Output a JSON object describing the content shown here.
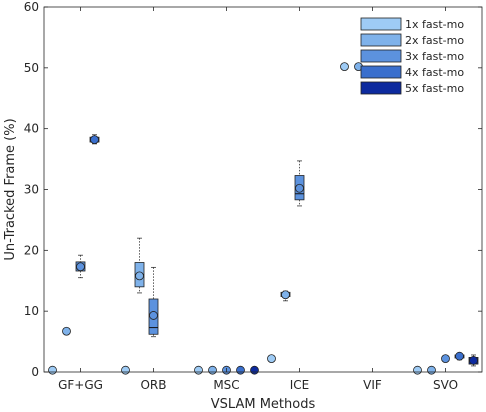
{
  "chart_data": {
    "type": "box",
    "xlabel": "VSLAM Methods",
    "ylabel": "Un-Tracked Frame (%)",
    "ylim": [
      0,
      60
    ],
    "yticks": [
      0,
      10,
      20,
      30,
      40,
      50,
      60
    ],
    "categories": [
      "GF+GG",
      "ORB",
      "MSC",
      "ICE",
      "VIF",
      "SVO"
    ],
    "grid": false,
    "legend_position": "top-right",
    "series": [
      {
        "name": "1x fast-mo",
        "color": "#9ecbf5",
        "boxes": [
          {
            "mean": 0.3
          },
          {
            "mean": 0.3
          },
          {
            "mean": 0.3
          },
          {
            "mean": 2.2
          },
          {
            "mean": 50.2
          },
          {
            "mean": 0.3
          }
        ]
      },
      {
        "name": "2x fast-mo",
        "color": "#7fb2ea",
        "boxes": [
          {
            "mean": 6.7
          },
          {
            "min": 13.0,
            "q1": 14.0,
            "median": 16.0,
            "q3": 18.0,
            "max": 22.0,
            "mean": 15.8
          },
          {
            "mean": 0.3
          },
          {
            "min": 11.7,
            "q1": 12.4,
            "median": 12.8,
            "q3": 13.1,
            "max": 13.3,
            "mean": 12.7
          },
          {
            "mean": 50.2
          },
          {
            "mean": 0.3
          }
        ]
      },
      {
        "name": "3x fast-mo",
        "color": "#5c92de",
        "boxes": [
          {
            "min": 15.5,
            "q1": 16.6,
            "median": 17.3,
            "q3": 18.1,
            "max": 19.2,
            "mean": 17.3
          },
          {
            "min": 5.8,
            "q1": 6.2,
            "median": 7.3,
            "q3": 12.0,
            "max": 17.2,
            "mean": 9.3
          },
          {
            "mean": 0.3
          },
          {
            "min": 27.3,
            "q1": 28.3,
            "median": 29.3,
            "q3": 32.3,
            "max": 34.7,
            "mean": 30.2
          },
          null,
          {
            "mean": 2.2
          }
        ]
      },
      {
        "name": "4x fast-mo",
        "color": "#3a6fcd",
        "boxes": [
          {
            "min": 37.5,
            "q1": 37.8,
            "median": 38.2,
            "q3": 38.6,
            "max": 39.0,
            "mean": 38.2
          },
          null,
          {
            "mean": 0.3
          },
          null,
          null,
          {
            "min": 2.0,
            "q1": 2.3,
            "median": 2.6,
            "q3": 2.8,
            "max": 3.0,
            "mean": 2.6
          }
        ]
      },
      {
        "name": "5x fast-mo",
        "color": "#0d2a9e",
        "boxes": [
          null,
          null,
          {
            "mean": 0.3
          },
          null,
          null,
          {
            "min": 1.0,
            "q1": 1.3,
            "median": 1.9,
            "q3": 2.4,
            "max": 2.8,
            "mean": 1.9
          }
        ]
      }
    ]
  }
}
